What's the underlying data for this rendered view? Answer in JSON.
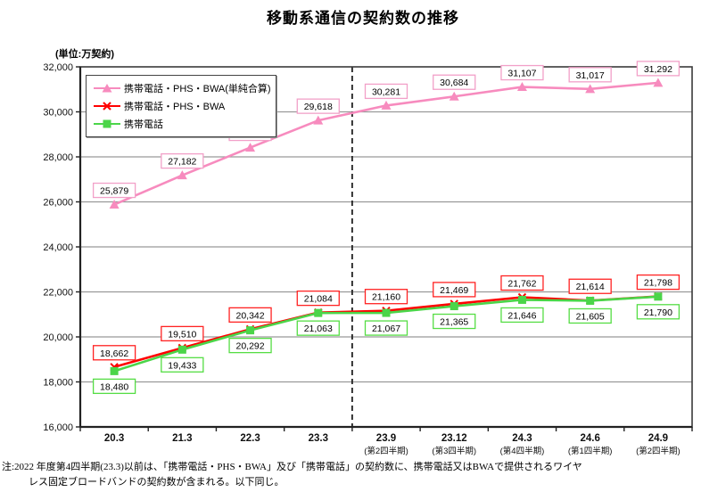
{
  "title": "移動系通信の契約数の推移",
  "unit_label": "(単位:万契約)",
  "note_line1": "注:2022 年度第4四半期(23.3)以前は、「携帯電話・PHS・BWA」及び「携帯電話」の契約数に、携帯電話又はBWAで提供されるワイヤ",
  "note_line2": "レス固定ブロードバンドの契約数が含まれる。以下同じ。",
  "chart_data": {
    "type": "line",
    "title": "移動系通信の契約数の推移",
    "ylabel": "(単位:万契約)",
    "ylim": [
      16000,
      32000
    ],
    "ytick_step": 2000,
    "grid": "horizontal",
    "legend_position": "top-left",
    "divider_after_category_index": 3,
    "categories": [
      "20.3",
      "21.3",
      "22.3",
      "23.3",
      "23.9",
      "23.12",
      "24.3",
      "24.6",
      "24.9"
    ],
    "category_sublabels": [
      "",
      "",
      "",
      "",
      "(第2四半期)",
      "(第3四半期)",
      "(第4四半期)",
      "(第1四半期)",
      "(第2四半期)"
    ],
    "series": [
      {
        "name": "携帯電話・PHS・BWA(単純合算)",
        "color": "#F78BBE",
        "box_color": "#F2A0C8",
        "marker": "triangle",
        "label_position": "above",
        "values": [
          25879,
          27182,
          28413,
          29618,
          30281,
          30684,
          31107,
          31017,
          31292
        ]
      },
      {
        "name": "携帯電話・PHS・BWA",
        "color": "#FF0000",
        "box_color": "#FF2222",
        "marker": "x",
        "label_position": "above",
        "values": [
          18662,
          19510,
          20342,
          21084,
          21160,
          21469,
          21762,
          21614,
          21798
        ]
      },
      {
        "name": "携帯電話",
        "color": "#4BD549",
        "box_color": "#55DD44",
        "marker": "square",
        "label_position": "below",
        "values": [
          18480,
          19433,
          20292,
          21063,
          21067,
          21365,
          21646,
          21605,
          21790
        ]
      }
    ],
    "colors": {
      "grid": "#999999",
      "frame": "#3a3a3a",
      "divider": "#222222",
      "tick_text": "#111111"
    }
  }
}
